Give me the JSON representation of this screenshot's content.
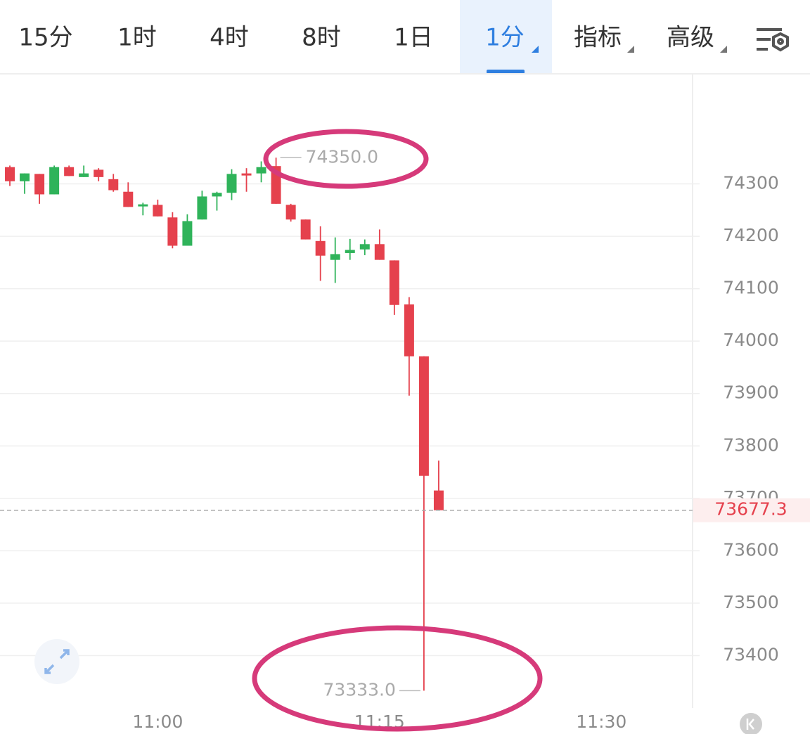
{
  "tabs": [
    "15分",
    "1时",
    "4时",
    "8时",
    "1日",
    "1分",
    "指标",
    "高级"
  ],
  "chart_data": {
    "type": "candlestick",
    "x": [
      "10:50",
      "10:51",
      "10:52",
      "10:53",
      "10:54",
      "10:55",
      "10:56",
      "10:57",
      "10:58",
      "10:59",
      "11:00",
      "11:01",
      "11:02",
      "11:03",
      "11:04",
      "11:05",
      "11:06",
      "11:07",
      "11:08",
      "11:09",
      "11:10",
      "11:11",
      "11:12",
      "11:13",
      "11:14",
      "11:15",
      "11:16",
      "11:17",
      "11:18",
      "11:19"
    ],
    "open": [
      74332,
      74305,
      74319,
      74280,
      74332,
      74313,
      74327,
      74309,
      74285,
      74257,
      74260,
      74236,
      74182,
      74232,
      74276,
      74283,
      74320,
      74320,
      74334,
      74260,
      74232,
      74191,
      74155,
      74168,
      74175,
      74185,
      74154,
      74070,
      73971,
      73715
    ],
    "high": [
      74335,
      74320,
      74319,
      74335,
      74335,
      74335,
      74330,
      74319,
      74303,
      74264,
      74270,
      74246,
      74242,
      74287,
      74285,
      74328,
      74330,
      74343,
      74350,
      74262,
      74232,
      74219,
      74198,
      74195,
      74194,
      74213,
      74154,
      74084,
      73971,
      73772
    ],
    "low": [
      74296,
      74281,
      74262,
      74280,
      74315,
      74313,
      74305,
      74285,
      74256,
      74240,
      74238,
      74177,
      74182,
      74232,
      74249,
      74269,
      74285,
      74303,
      74262,
      74228,
      74194,
      74115,
      74111,
      74155,
      74164,
      74155,
      74050,
      73896,
      73333,
      73677.3
    ],
    "close": [
      74305,
      74320,
      74280,
      74332,
      74315,
      74320,
      74313,
      74288,
      74256,
      74261,
      74238,
      74182,
      74229,
      74276,
      74283,
      74319,
      74316,
      74332,
      74262,
      74232,
      74194,
      74163,
      74166,
      74174,
      74185,
      74155,
      74069,
      73971,
      73743,
      73677.3
    ],
    "up_color": "#2fb35a",
    "down_color": "#e5414d",
    "xlim": [
      "10:49:20",
      "11:36:10"
    ],
    "xticks": [
      "11:00",
      "11:15",
      "11:30"
    ],
    "ylim": [
      73300,
      74510
    ],
    "yticks": [
      73400,
      73500,
      73600,
      73700,
      73800,
      73900,
      74000,
      74100,
      74200,
      74300
    ],
    "grid": true,
    "annotations": [
      {
        "value": 74350,
        "label": "74350.0"
      },
      {
        "value": 73333,
        "label": "73333.0"
      }
    ],
    "last_price": 73677.3
  }
}
